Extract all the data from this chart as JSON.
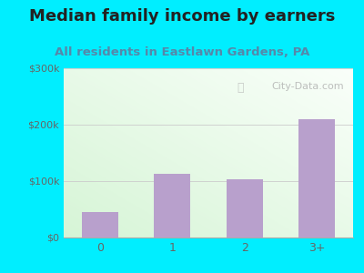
{
  "title": "Median family income by earners",
  "subtitle": "All residents in Eastlawn Gardens, PA",
  "categories": [
    "0",
    "1",
    "2",
    "3+"
  ],
  "values": [
    45000,
    113000,
    103000,
    210000
  ],
  "bar_color": "#b8a0cc",
  "ylim": [
    0,
    300000
  ],
  "ytick_labels": [
    "$0",
    "$100k",
    "$200k",
    "$300k"
  ],
  "ytick_values": [
    0,
    100000,
    200000,
    300000
  ],
  "title_color": "#222222",
  "subtitle_color": "#5588aa",
  "bg_outer": "#00eeff",
  "watermark": "City-Data.com",
  "title_fontsize": 13,
  "subtitle_fontsize": 9.5,
  "tick_color": "#666666",
  "grid_color": "#cccccc",
  "gradient_green": [
    0.84,
    0.96,
    0.84
  ],
  "gradient_white": [
    0.98,
    1.0,
    0.98
  ]
}
